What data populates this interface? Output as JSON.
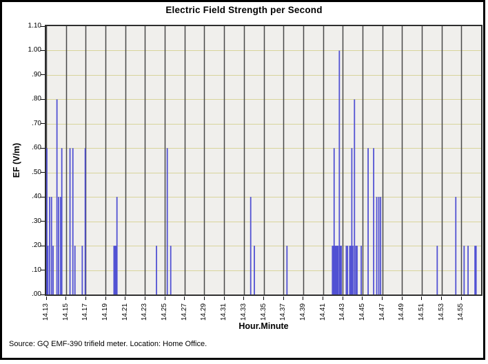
{
  "window": {
    "background_color": "#ffffff",
    "frame_color": "#000000"
  },
  "chart": {
    "title": "Electric Field Strength per Second",
    "x_axis_title": "Hour.Minute",
    "y_axis_title": "EF (V/m)",
    "source_note": "Source: GQ EMF-390 trifield meter. Location: Home Office.",
    "colors": {
      "plot_background": "#f0efec",
      "horizontal_gridline": "#d8d49a",
      "vertical_gridline": "#484848",
      "spike": "#5151d3",
      "axis_frame": "#2e2e2e",
      "text": "#000000"
    }
  },
  "chart_data": {
    "type": "bar",
    "title": "Electric Field Strength per Second",
    "xlabel": "Hour.Minute",
    "ylabel": "EF (V/m)",
    "legend": null,
    "grid": "both",
    "x_unit": "minutes after 14:00",
    "x_range": [
      13,
      57
    ],
    "y_range": [
      0,
      1.1
    ],
    "x_tick_minutes": [
      13,
      15,
      17,
      19,
      21,
      23,
      25,
      27,
      29,
      31,
      33,
      35,
      37,
      39,
      41,
      43,
      45,
      47,
      49,
      51,
      53,
      55
    ],
    "x_tick_labels": [
      "14.13",
      "14.15",
      "14.17",
      "14.19",
      "14.21",
      "14.23",
      "14.25",
      "14.27",
      "14.29",
      "14.31",
      "14.33",
      "14.35",
      "14.37",
      "14.39",
      "14.41",
      "14.43",
      "14.45",
      "14.47",
      "14.49",
      "14.51",
      "14.53",
      "14.55"
    ],
    "y_tick_values": [
      0,
      0.1,
      0.2,
      0.3,
      0.4,
      0.5,
      0.6,
      0.7,
      0.8,
      0.9,
      1.0,
      1.1
    ],
    "y_tick_labels": [
      ".00",
      ".10",
      ".20",
      ".30",
      ".40",
      ".50",
      ".60",
      ".70",
      ".80",
      ".90",
      "1.00",
      "1.10"
    ],
    "points_format": [
      "minute_after_14",
      "ef_vm"
    ],
    "points": [
      [
        13.07,
        0.6
      ],
      [
        13.17,
        0.2
      ],
      [
        13.35,
        0.4
      ],
      [
        13.54,
        0.4
      ],
      [
        13.7,
        0.2
      ],
      [
        14.09,
        0.8
      ],
      [
        14.26,
        0.4
      ],
      [
        14.46,
        0.4
      ],
      [
        14.58,
        0.6
      ],
      [
        15.41,
        0.6
      ],
      [
        15.7,
        0.6
      ],
      [
        15.91,
        0.2
      ],
      [
        16.65,
        0.2
      ],
      [
        16.95,
        0.6
      ],
      [
        19.86,
        0.2
      ],
      [
        19.97,
        0.2
      ],
      [
        20.07,
        0.2
      ],
      [
        20.16,
        0.4
      ],
      [
        24.16,
        0.2
      ],
      [
        25.25,
        0.6
      ],
      [
        25.6,
        0.2
      ],
      [
        33.69,
        0.4
      ],
      [
        34.06,
        0.2
      ],
      [
        37.36,
        0.2
      ],
      [
        41.96,
        0.2
      ],
      [
        42.06,
        0.2
      ],
      [
        42.13,
        0.6
      ],
      [
        42.24,
        0.2
      ],
      [
        42.34,
        0.2
      ],
      [
        42.43,
        0.2
      ],
      [
        42.52,
        0.2
      ],
      [
        42.66,
        1.0
      ],
      [
        42.76,
        0.2
      ],
      [
        42.85,
        0.2
      ],
      [
        43.36,
        0.2
      ],
      [
        43.48,
        0.2
      ],
      [
        43.71,
        0.2
      ],
      [
        43.82,
        0.2
      ],
      [
        43.92,
        0.6
      ],
      [
        44.03,
        0.2
      ],
      [
        44.19,
        0.8
      ],
      [
        44.33,
        0.2
      ],
      [
        44.45,
        0.2
      ],
      [
        44.87,
        0.2
      ],
      [
        45.57,
        0.6
      ],
      [
        46.13,
        0.6
      ],
      [
        46.44,
        0.4
      ],
      [
        46.65,
        0.4
      ],
      [
        46.83,
        0.4
      ],
      [
        52.56,
        0.2
      ],
      [
        54.44,
        0.4
      ],
      [
        55.28,
        0.2
      ],
      [
        55.68,
        0.2
      ],
      [
        56.38,
        0.2
      ],
      [
        56.49,
        0.2
      ]
    ]
  }
}
